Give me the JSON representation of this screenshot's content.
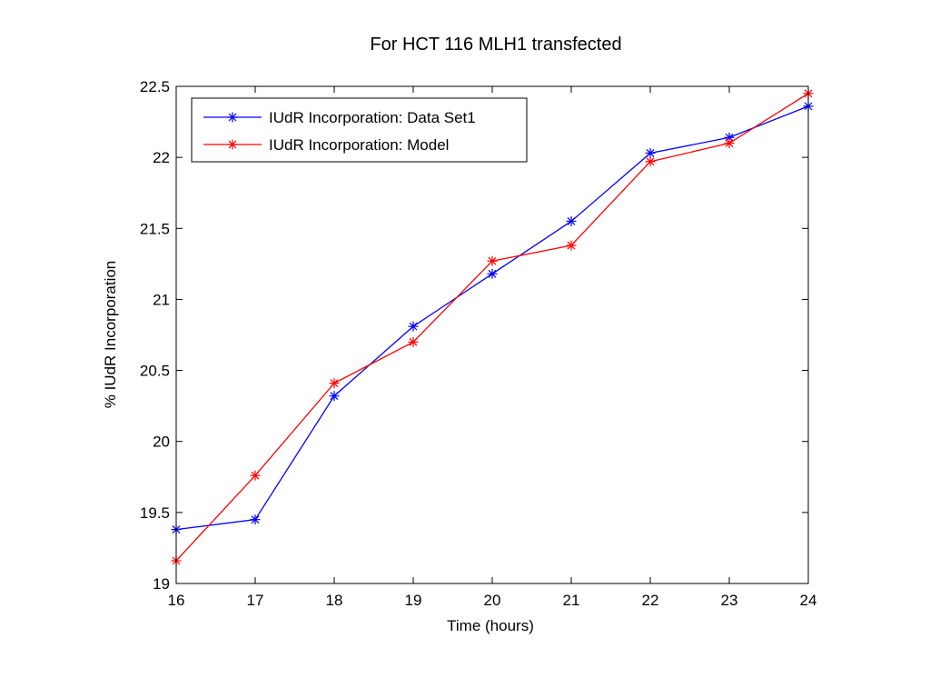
{
  "chart_data": {
    "type": "line",
    "title": "For HCT 116 MLH1 transfected",
    "xlabel": "Time (hours)",
    "ylabel": "% IUdR Incorporation",
    "xlim": [
      16,
      24
    ],
    "ylim": [
      19,
      22.5
    ],
    "xticks": [
      16,
      17,
      18,
      19,
      20,
      21,
      22,
      23,
      24
    ],
    "yticks": [
      19,
      19.5,
      20,
      20.5,
      21,
      21.5,
      22,
      22.5
    ],
    "xtick_labels": [
      "16",
      "17",
      "18",
      "19",
      "20",
      "21",
      "22",
      "23",
      "24"
    ],
    "ytick_labels": [
      "19",
      "19.5",
      "20",
      "20.5",
      "21",
      "21.5",
      "22",
      "22.5"
    ],
    "grid": false,
    "legend_position": "top-left",
    "x": [
      16,
      17,
      18,
      19,
      20,
      21,
      22,
      23,
      24
    ],
    "series": [
      {
        "name": "IUdR Incorporation: Data Set1",
        "color": "#0000ff",
        "marker": "asterisk",
        "values": [
          19.38,
          19.45,
          20.32,
          20.81,
          21.18,
          21.55,
          22.03,
          22.14,
          22.36
        ]
      },
      {
        "name": "IUdR Incorporation: Model",
        "color": "#ff0000",
        "marker": "asterisk",
        "values": [
          19.16,
          19.76,
          20.41,
          20.7,
          21.27,
          21.38,
          21.97,
          22.1,
          22.45
        ]
      }
    ]
  }
}
